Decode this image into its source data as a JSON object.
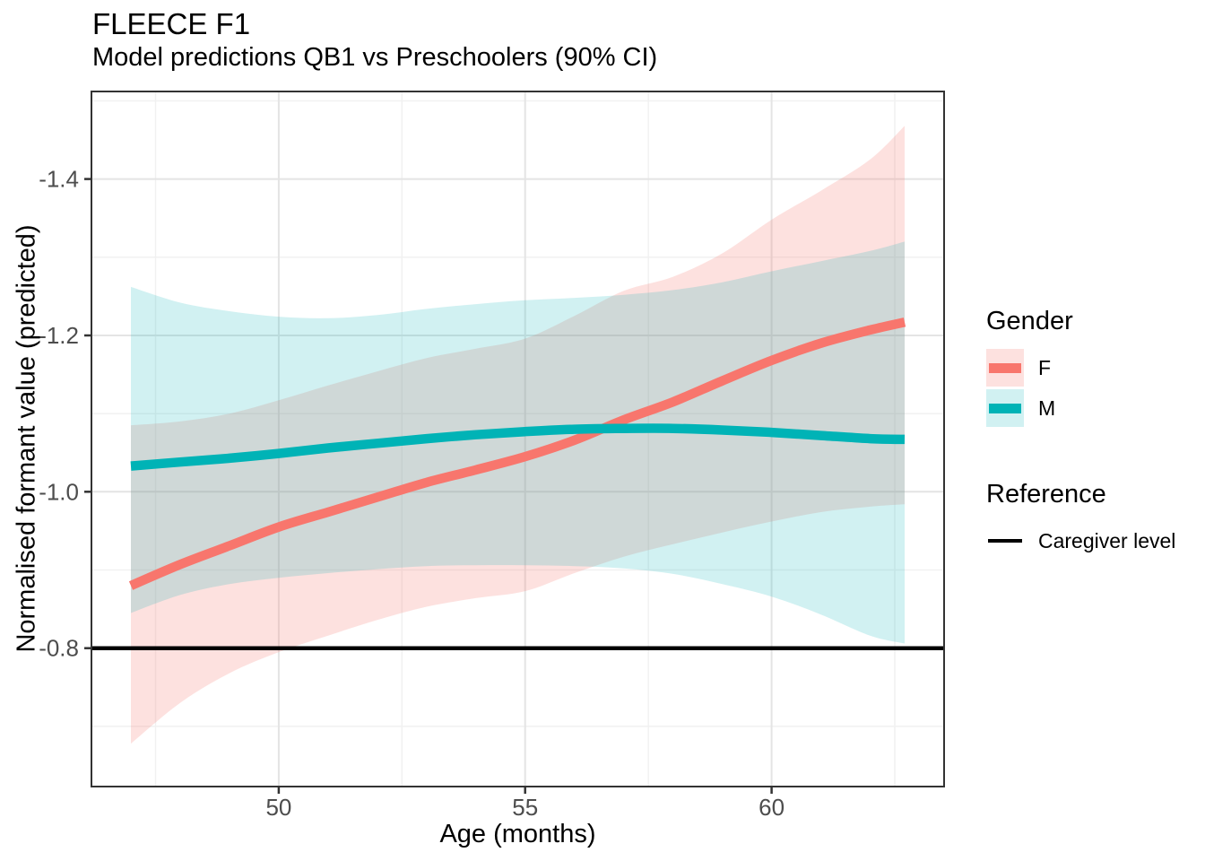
{
  "chart_data": {
    "type": "line",
    "title": "FLEECE F1",
    "subtitle": "Model predictions QB1 vs Preschoolers (90% CI)",
    "xlabel": "Age (months)",
    "ylabel": "Normalised formant value (predicted)",
    "ci_level": "90%",
    "x": [
      47,
      48,
      49,
      50,
      51,
      52,
      53,
      54,
      55,
      56,
      57,
      58,
      59,
      60,
      61,
      62,
      62.7
    ],
    "series": [
      {
        "name": "F",
        "color": "#F8766D",
        "ribbon_opacity": 0.22,
        "mean": [
          -0.88,
          -0.907,
          -0.931,
          -0.955,
          -0.974,
          -0.993,
          -1.012,
          -1.028,
          -1.045,
          -1.066,
          -1.092,
          -1.115,
          -1.142,
          -1.168,
          -1.19,
          -1.207,
          -1.217
        ],
        "upper": [
          -1.085,
          -1.09,
          -1.1,
          -1.117,
          -1.136,
          -1.154,
          -1.171,
          -1.183,
          -1.196,
          -1.225,
          -1.257,
          -1.275,
          -1.305,
          -1.348,
          -1.385,
          -1.425,
          -1.468
        ],
        "lower": [
          -0.678,
          -0.73,
          -0.768,
          -0.795,
          -0.816,
          -0.836,
          -0.853,
          -0.864,
          -0.873,
          -0.896,
          -0.917,
          -0.933,
          -0.948,
          -0.962,
          -0.974,
          -0.981,
          -0.984
        ]
      },
      {
        "name": "M",
        "color": "#00B3B6",
        "ribbon_opacity": 0.18,
        "mean": [
          -1.033,
          -1.038,
          -1.043,
          -1.049,
          -1.056,
          -1.062,
          -1.068,
          -1.073,
          -1.077,
          -1.08,
          -1.081,
          -1.081,
          -1.079,
          -1.076,
          -1.072,
          -1.068,
          -1.067
        ],
        "upper": [
          -1.262,
          -1.242,
          -1.231,
          -1.224,
          -1.222,
          -1.226,
          -1.234,
          -1.24,
          -1.245,
          -1.248,
          -1.252,
          -1.258,
          -1.268,
          -1.282,
          -1.295,
          -1.308,
          -1.32
        ],
        "lower": [
          -0.845,
          -0.868,
          -0.882,
          -0.89,
          -0.896,
          -0.901,
          -0.905,
          -0.906,
          -0.906,
          -0.905,
          -0.902,
          -0.895,
          -0.882,
          -0.866,
          -0.843,
          -0.816,
          -0.806
        ]
      }
    ],
    "reference_line": {
      "value": -0.8,
      "label": "Caregiver level",
      "color": "#000000"
    },
    "axes": {
      "x": {
        "domain": [
          46.2,
          63.5
        ],
        "ticks": [
          50,
          55,
          60
        ],
        "tick_labels": [
          "50",
          "55",
          "60"
        ],
        "minor_ticks": [
          47.5,
          52.5,
          57.5,
          62.5
        ]
      },
      "y": {
        "domain": [
          -1.512,
          -0.623
        ],
        "direction": "reversed (more negative at top)",
        "ticks": [
          -1.4,
          -1.2,
          -1.0,
          -0.8
        ],
        "tick_labels": [
          "-1.4",
          "-1.2",
          "-1.0",
          "-0.8"
        ],
        "minor_ticks": [
          -1.5,
          -1.3,
          -1.1,
          -0.9,
          -0.7
        ]
      }
    },
    "legend_position": "right",
    "grid": "on"
  },
  "legend": {
    "gender": {
      "title": "Gender",
      "items": [
        {
          "label": "F",
          "line_color": "#F8766D",
          "swatch_bg": "rgba(248,118,109,0.22)"
        },
        {
          "label": "M",
          "line_color": "#00B3B6",
          "swatch_bg": "rgba(0,179,182,0.18)"
        }
      ]
    },
    "reference": {
      "title": "Reference",
      "items": [
        {
          "label": "Caregiver level",
          "line_color": "#000000"
        }
      ]
    }
  },
  "colors": {
    "background": "#FFFFFF",
    "grid_major": "#E4E4E4",
    "grid_minor": "#F1F1F1",
    "axis_text": "#4D4D4D",
    "tick_mark": "#333333",
    "panel_border": "#333333",
    "f_line": "#F8766D",
    "m_line": "#00B3B6",
    "reference_line": "#000000"
  }
}
